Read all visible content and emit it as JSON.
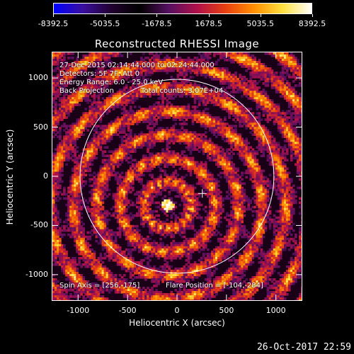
{
  "colorbar": {
    "ticks": [
      "-8392.5",
      "-5035.5",
      "-1678.5",
      "1678.5",
      "5035.5",
      "8392.5"
    ],
    "min": -8392.5,
    "max": 8392.5,
    "colormap": [
      "#0000ff",
      "#3a0fa0",
      "#220030",
      "#000000",
      "#551060",
      "#b0104a",
      "#e84010",
      "#ff9000",
      "#ffe040",
      "#ffffff"
    ]
  },
  "chart_data": {
    "type": "heatmap",
    "title": "Reconstructed RHESSI Image",
    "xlabel": "Heliocentric X (arcsec)",
    "ylabel": "Heliocentric Y (arcsec)",
    "xlim": [
      -1260,
      1260
    ],
    "ylim": [
      -1260,
      1260
    ],
    "xticks": [
      "-1000",
      "-500",
      "0",
      "500",
      "1000"
    ],
    "yticks": [
      "1000",
      "500",
      "0",
      "-500",
      "-1000"
    ],
    "xtick_values": [
      -1000,
      -500,
      0,
      500,
      1000
    ],
    "ytick_values": [
      1000,
      500,
      0,
      -500,
      -1000
    ],
    "solar_limb_radius_arcsec": 980,
    "flare_position": [
      -104,
      -284
    ],
    "spin_axis": [
      256,
      -175
    ],
    "bright_source": [
      -104,
      -284
    ]
  },
  "annotations": {
    "time_range": "27-Dec-2015 02:14:44.000 to 02:24:44.000",
    "detectors": "Detectors: 5F 7F, Att 0",
    "energy_range": "Energy Range: 6.0 - 25.0 keV",
    "method": "Back Projection",
    "total_counts": "Total counts: 3.07E+04",
    "spin_axis": "Spin Axis = [256,-175]",
    "flare_position": "Flare Position = [-104,-284]"
  },
  "date_stamp": "26-Oct-2017 22:59"
}
